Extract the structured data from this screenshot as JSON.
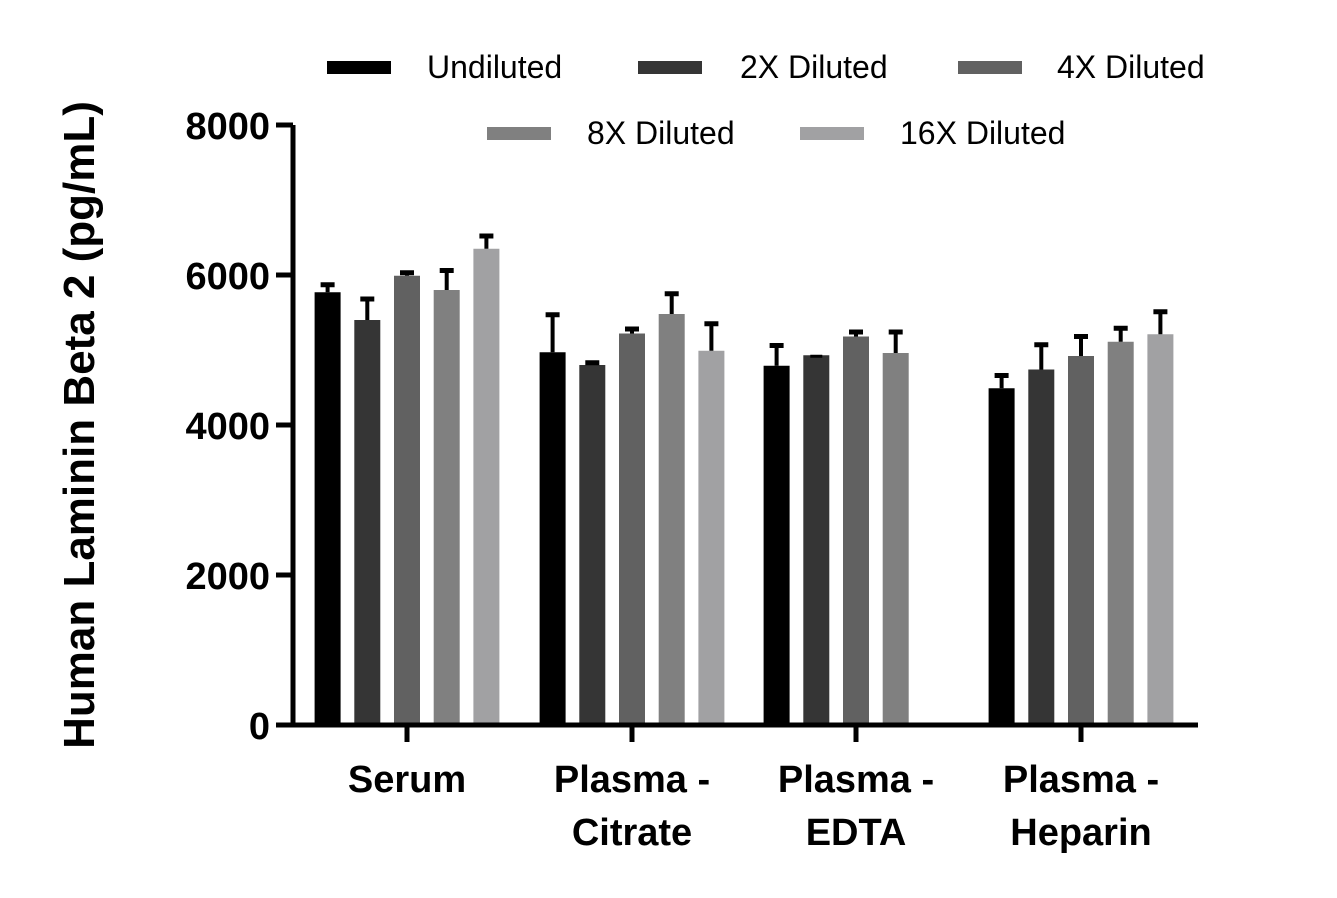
{
  "chart_data": {
    "type": "bar",
    "title": "",
    "xlabel": "",
    "ylabel": "Human Laminin Beta 2 (pg/mL)",
    "ylim": [
      0,
      8000
    ],
    "yticks": [
      "0",
      "2000",
      "4000",
      "6000",
      "8000"
    ],
    "ytick_values": [
      0,
      2000,
      4000,
      6000,
      8000
    ],
    "grid": false,
    "legend_position": "top",
    "categories": [
      {
        "lines": [
          "Serum"
        ]
      },
      {
        "lines": [
          "Plasma -",
          "Citrate"
        ]
      },
      {
        "lines": [
          "Plasma -",
          "EDTA"
        ]
      },
      {
        "lines": [
          "Plasma -",
          "Heparin"
        ]
      }
    ],
    "series": [
      {
        "name": "Undiluted",
        "color": "#000000",
        "values": [
          5770,
          4970,
          4790,
          4490
        ],
        "errors": [
          100,
          500,
          270,
          170
        ]
      },
      {
        "name": "2X Diluted",
        "color": "#353535",
        "values": [
          5400,
          4800,
          4930,
          4740
        ],
        "errors": [
          280,
          30,
          0,
          330
        ]
      },
      {
        "name": "4X Diluted",
        "color": "#616161",
        "values": [
          5990,
          5220,
          5180,
          4920
        ],
        "errors": [
          40,
          60,
          60,
          260
        ]
      },
      {
        "name": "8X Diluted",
        "color": "#808080",
        "values": [
          5800,
          5480,
          4960,
          5110
        ],
        "errors": [
          260,
          270,
          280,
          180
        ]
      },
      {
        "name": "16X Diluted",
        "color": "#a1a1a3",
        "values": [
          6350,
          4990,
          null,
          5210
        ],
        "errors": [
          170,
          360,
          null,
          300
        ]
      }
    ]
  }
}
